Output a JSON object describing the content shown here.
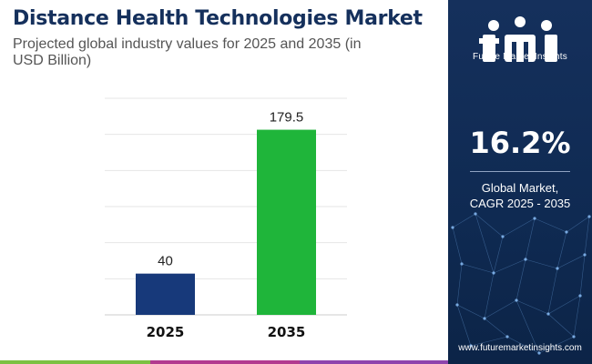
{
  "header": {
    "title": "Distance Health Technologies Market",
    "subtitle": "Projected global industry values for 2025 and 2035 (in USD Billion)"
  },
  "chart_data": {
    "type": "bar",
    "categories": [
      "2025",
      "2035"
    ],
    "values": [
      40,
      179.5
    ],
    "value_labels": [
      "40",
      "179.5"
    ],
    "ylim": [
      0,
      210
    ],
    "grid": true,
    "bar_colors": [
      "#17397a",
      "#1fb53a"
    ]
  },
  "panel": {
    "brand_name": "Future Market Insights",
    "cagr_value": "16.2%",
    "cagr_label_line1": "Global Market,",
    "cagr_label_line2": "CAGR 2025 - 2035",
    "website": "www.futuremarketinsights.com"
  },
  "colors": {
    "title": "#15305c",
    "panel_bg": "#15305c",
    "stripe": [
      "#7bc142",
      "#b23a8f",
      "#8e44ad"
    ]
  }
}
